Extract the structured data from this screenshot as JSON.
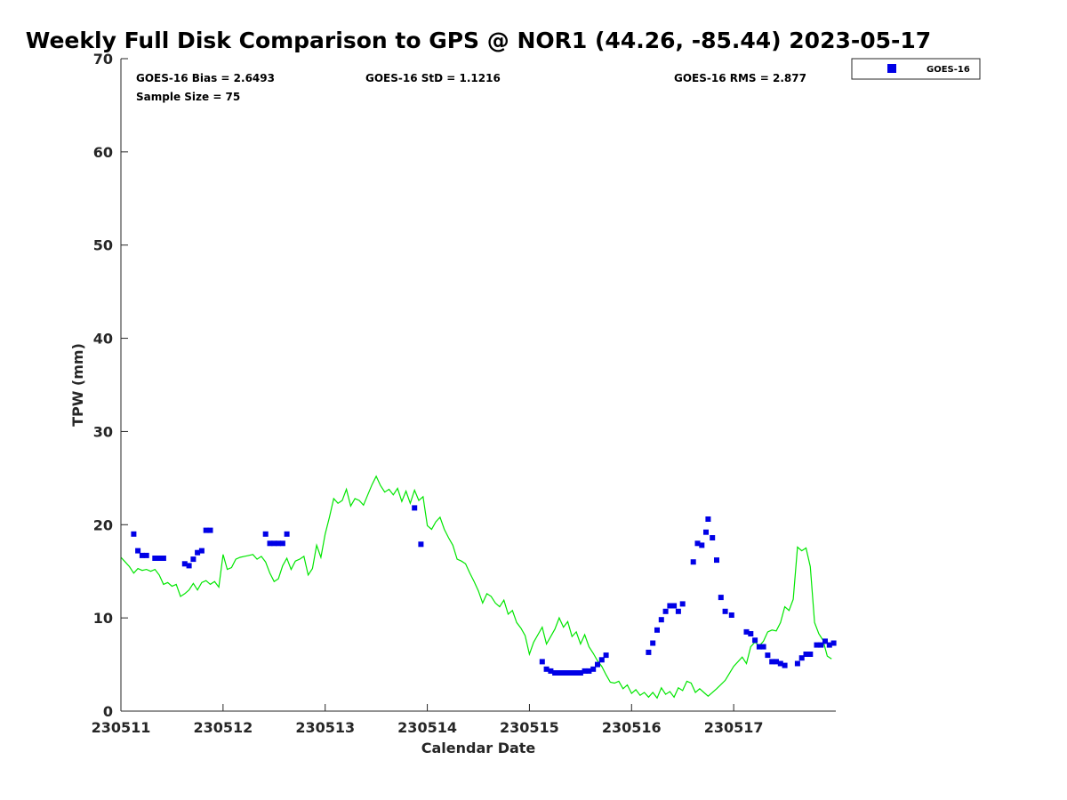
{
  "chart_data": {
    "type": "scatter",
    "title": "Weekly Full Disk Comparison to GPS @ NOR1 (44.26, -85.44) 2023-05-17",
    "xlabel": "Calendar Date",
    "ylabel": "TPW (mm)",
    "xlim": [
      "2023-05-11T00:00",
      "2023-05-18T00:00"
    ],
    "ylim": [
      0,
      70
    ],
    "x_ticks": [
      "2023-05-11",
      "2023-05-12",
      "2023-05-13",
      "2023-05-14",
      "2023-05-15",
      "2023-05-16",
      "2023-05-17"
    ],
    "x_tick_labels": [
      "230511",
      "230512",
      "230513",
      "230514",
      "230515",
      "230516",
      "230517"
    ],
    "y_ticks": [
      0,
      10,
      20,
      30,
      40,
      50,
      60,
      70
    ],
    "grid": false,
    "legend_position": "top-right, outside plot",
    "stats": {
      "bias": "GOES-16 Bias = 2.6493",
      "std": "GOES-16 StD = 1.1216",
      "rms": "GOES-16 RMS = 2.877",
      "sample_size": "Sample Size = 75"
    },
    "series": [
      {
        "name": "GOES-16",
        "kind": "scatter",
        "marker": "square",
        "color": "#0000e6",
        "points": [
          [
            "2023-05-11T03:00",
            19.0
          ],
          [
            "2023-05-11T04:00",
            17.2
          ],
          [
            "2023-05-11T05:00",
            16.7
          ],
          [
            "2023-05-11T06:00",
            16.7
          ],
          [
            "2023-05-11T08:00",
            16.4
          ],
          [
            "2023-05-11T09:00",
            16.4
          ],
          [
            "2023-05-11T10:00",
            16.4
          ],
          [
            "2023-05-11T15:00",
            15.8
          ],
          [
            "2023-05-11T16:00",
            15.6
          ],
          [
            "2023-05-11T17:00",
            16.3
          ],
          [
            "2023-05-11T18:00",
            17.0
          ],
          [
            "2023-05-11T19:00",
            17.2
          ],
          [
            "2023-05-11T20:00",
            19.4
          ],
          [
            "2023-05-11T21:00",
            19.4
          ],
          [
            "2023-05-12T10:00",
            19.0
          ],
          [
            "2023-05-12T11:00",
            18.0
          ],
          [
            "2023-05-12T12:00",
            18.0
          ],
          [
            "2023-05-12T13:00",
            18.0
          ],
          [
            "2023-05-12T14:00",
            18.0
          ],
          [
            "2023-05-12T15:00",
            19.0
          ],
          [
            "2023-05-13T21:00",
            21.8
          ],
          [
            "2023-05-13T22:30",
            17.9
          ],
          [
            "2023-05-15T03:00",
            5.3
          ],
          [
            "2023-05-15T04:00",
            4.5
          ],
          [
            "2023-05-15T05:00",
            4.3
          ],
          [
            "2023-05-15T06:00",
            4.1
          ],
          [
            "2023-05-15T07:00",
            4.1
          ],
          [
            "2023-05-15T08:00",
            4.1
          ],
          [
            "2023-05-15T09:00",
            4.1
          ],
          [
            "2023-05-15T10:00",
            4.1
          ],
          [
            "2023-05-15T11:00",
            4.1
          ],
          [
            "2023-05-15T12:00",
            4.1
          ],
          [
            "2023-05-15T13:00",
            4.3
          ],
          [
            "2023-05-15T14:00",
            4.3
          ],
          [
            "2023-05-15T15:00",
            4.5
          ],
          [
            "2023-05-15T16:00",
            5.0
          ],
          [
            "2023-05-15T17:00",
            5.5
          ],
          [
            "2023-05-15T18:00",
            6.0
          ],
          [
            "2023-05-16T04:00",
            6.3
          ],
          [
            "2023-05-16T05:00",
            7.3
          ],
          [
            "2023-05-16T06:00",
            8.7
          ],
          [
            "2023-05-16T07:00",
            9.8
          ],
          [
            "2023-05-16T08:00",
            10.7
          ],
          [
            "2023-05-16T09:00",
            11.3
          ],
          [
            "2023-05-16T10:00",
            11.3
          ],
          [
            "2023-05-16T11:00",
            10.7
          ],
          [
            "2023-05-16T12:00",
            11.5
          ],
          [
            "2023-05-16T14:30",
            16.0
          ],
          [
            "2023-05-16T15:30",
            18.0
          ],
          [
            "2023-05-16T16:30",
            17.8
          ],
          [
            "2023-05-16T17:30",
            19.2
          ],
          [
            "2023-05-16T18:00",
            20.6
          ],
          [
            "2023-05-16T19:00",
            18.6
          ],
          [
            "2023-05-16T20:00",
            16.2
          ],
          [
            "2023-05-16T21:00",
            12.2
          ],
          [
            "2023-05-16T22:00",
            10.7
          ],
          [
            "2023-05-16T23:30",
            10.3
          ],
          [
            "2023-05-17T03:00",
            8.5
          ],
          [
            "2023-05-17T04:00",
            8.3
          ],
          [
            "2023-05-17T05:00",
            7.6
          ],
          [
            "2023-05-17T06:00",
            6.9
          ],
          [
            "2023-05-17T07:00",
            6.9
          ],
          [
            "2023-05-17T08:00",
            6.0
          ],
          [
            "2023-05-17T09:00",
            5.3
          ],
          [
            "2023-05-17T10:00",
            5.3
          ],
          [
            "2023-05-17T11:00",
            5.1
          ],
          [
            "2023-05-17T12:00",
            4.9
          ],
          [
            "2023-05-17T15:00",
            5.1
          ],
          [
            "2023-05-17T16:00",
            5.7
          ],
          [
            "2023-05-17T17:00",
            6.1
          ],
          [
            "2023-05-17T18:00",
            6.1
          ],
          [
            "2023-05-17T19:30",
            7.1
          ],
          [
            "2023-05-17T20:30",
            7.1
          ],
          [
            "2023-05-17T21:30",
            7.5
          ],
          [
            "2023-05-17T22:30",
            7.1
          ],
          [
            "2023-05-17T23:30",
            7.3
          ]
        ]
      },
      {
        "kind": "line",
        "color": "#00e600",
        "points": [
          [
            "2023-05-11T00:00",
            16.5
          ],
          [
            "2023-05-11T01:00",
            16.0
          ],
          [
            "2023-05-11T02:00",
            15.5
          ],
          [
            "2023-05-11T03:00",
            14.8
          ],
          [
            "2023-05-11T04:00",
            15.3
          ],
          [
            "2023-05-11T05:00",
            15.1
          ],
          [
            "2023-05-11T06:00",
            15.2
          ],
          [
            "2023-05-11T07:00",
            15.0
          ],
          [
            "2023-05-11T08:00",
            15.2
          ],
          [
            "2023-05-11T09:00",
            14.6
          ],
          [
            "2023-05-11T10:00",
            13.6
          ],
          [
            "2023-05-11T11:00",
            13.8
          ],
          [
            "2023-05-11T12:00",
            13.4
          ],
          [
            "2023-05-11T13:00",
            13.6
          ],
          [
            "2023-05-11T14:00",
            12.3
          ],
          [
            "2023-05-11T15:00",
            12.6
          ],
          [
            "2023-05-11T16:00",
            13.0
          ],
          [
            "2023-05-11T17:00",
            13.7
          ],
          [
            "2023-05-11T18:00",
            13.0
          ],
          [
            "2023-05-11T19:00",
            13.8
          ],
          [
            "2023-05-11T20:00",
            14.0
          ],
          [
            "2023-05-11T21:00",
            13.6
          ],
          [
            "2023-05-11T22:00",
            13.9
          ],
          [
            "2023-05-11T23:00",
            13.3
          ],
          [
            "2023-05-12T00:00",
            16.8
          ],
          [
            "2023-05-12T01:00",
            15.2
          ],
          [
            "2023-05-12T02:00",
            15.4
          ],
          [
            "2023-05-12T03:00",
            16.3
          ],
          [
            "2023-05-12T04:00",
            16.5
          ],
          [
            "2023-05-12T05:00",
            16.6
          ],
          [
            "2023-05-12T06:00",
            16.7
          ],
          [
            "2023-05-12T07:00",
            16.8
          ],
          [
            "2023-05-12T08:00",
            16.3
          ],
          [
            "2023-05-12T09:00",
            16.6
          ],
          [
            "2023-05-12T10:00",
            16.0
          ],
          [
            "2023-05-12T11:00",
            14.8
          ],
          [
            "2023-05-12T12:00",
            13.9
          ],
          [
            "2023-05-12T13:00",
            14.2
          ],
          [
            "2023-05-12T14:00",
            15.6
          ],
          [
            "2023-05-12T15:00",
            16.4
          ],
          [
            "2023-05-12T16:00",
            15.2
          ],
          [
            "2023-05-12T17:00",
            16.1
          ],
          [
            "2023-05-12T18:00",
            16.3
          ],
          [
            "2023-05-12T19:00",
            16.6
          ],
          [
            "2023-05-12T20:00",
            14.6
          ],
          [
            "2023-05-12T21:00",
            15.3
          ],
          [
            "2023-05-12T22:00",
            17.8
          ],
          [
            "2023-05-12T23:00",
            16.5
          ],
          [
            "2023-05-13T00:00",
            19.0
          ],
          [
            "2023-05-13T01:00",
            20.8
          ],
          [
            "2023-05-13T02:00",
            22.8
          ],
          [
            "2023-05-13T03:00",
            22.3
          ],
          [
            "2023-05-13T04:00",
            22.6
          ],
          [
            "2023-05-13T05:00",
            23.8
          ],
          [
            "2023-05-13T06:00",
            22.0
          ],
          [
            "2023-05-13T07:00",
            22.8
          ],
          [
            "2023-05-13T08:00",
            22.6
          ],
          [
            "2023-05-13T09:00",
            22.1
          ],
          [
            "2023-05-13T10:00",
            23.2
          ],
          [
            "2023-05-13T11:00",
            24.3
          ],
          [
            "2023-05-13T12:00",
            25.2
          ],
          [
            "2023-05-13T13:00",
            24.2
          ],
          [
            "2023-05-13T14:00",
            23.5
          ],
          [
            "2023-05-13T15:00",
            23.8
          ],
          [
            "2023-05-13T16:00",
            23.2
          ],
          [
            "2023-05-13T17:00",
            23.9
          ],
          [
            "2023-05-13T18:00",
            22.5
          ],
          [
            "2023-05-13T19:00",
            23.6
          ],
          [
            "2023-05-13T20:00",
            22.3
          ],
          [
            "2023-05-13T21:00",
            23.7
          ],
          [
            "2023-05-13T22:00",
            22.6
          ],
          [
            "2023-05-13T23:00",
            23.0
          ],
          [
            "2023-05-14T00:00",
            19.9
          ],
          [
            "2023-05-14T01:00",
            19.5
          ],
          [
            "2023-05-14T02:00",
            20.3
          ],
          [
            "2023-05-14T03:00",
            20.8
          ],
          [
            "2023-05-14T04:00",
            19.5
          ],
          [
            "2023-05-14T05:00",
            18.6
          ],
          [
            "2023-05-14T06:00",
            17.8
          ],
          [
            "2023-05-14T07:00",
            16.3
          ],
          [
            "2023-05-14T08:00",
            16.1
          ],
          [
            "2023-05-14T09:00",
            15.8
          ],
          [
            "2023-05-14T10:00",
            14.8
          ],
          [
            "2023-05-14T11:00",
            13.9
          ],
          [
            "2023-05-14T12:00",
            12.9
          ],
          [
            "2023-05-14T13:00",
            11.6
          ],
          [
            "2023-05-14T14:00",
            12.6
          ],
          [
            "2023-05-14T15:00",
            12.3
          ],
          [
            "2023-05-14T16:00",
            11.6
          ],
          [
            "2023-05-14T17:00",
            11.2
          ],
          [
            "2023-05-14T18:00",
            11.9
          ],
          [
            "2023-05-14T19:00",
            10.4
          ],
          [
            "2023-05-14T20:00",
            10.8
          ],
          [
            "2023-05-14T21:00",
            9.5
          ],
          [
            "2023-05-14T22:00",
            8.9
          ],
          [
            "2023-05-14T23:00",
            8.1
          ],
          [
            "2023-05-15T00:00",
            6.1
          ],
          [
            "2023-05-15T01:00",
            7.4
          ],
          [
            "2023-05-15T02:00",
            8.2
          ],
          [
            "2023-05-15T03:00",
            9.0
          ],
          [
            "2023-05-15T04:00",
            7.2
          ],
          [
            "2023-05-15T05:00",
            8.0
          ],
          [
            "2023-05-15T06:00",
            8.8
          ],
          [
            "2023-05-15T07:00",
            10.0
          ],
          [
            "2023-05-15T08:00",
            9.0
          ],
          [
            "2023-05-15T09:00",
            9.6
          ],
          [
            "2023-05-15T10:00",
            8.0
          ],
          [
            "2023-05-15T11:00",
            8.5
          ],
          [
            "2023-05-15T12:00",
            7.2
          ],
          [
            "2023-05-15T13:00",
            8.2
          ],
          [
            "2023-05-15T14:00",
            6.9
          ],
          [
            "2023-05-15T15:00",
            6.2
          ],
          [
            "2023-05-15T16:00",
            5.4
          ],
          [
            "2023-05-15T17:00",
            4.8
          ],
          [
            "2023-05-15T18:00",
            3.9
          ],
          [
            "2023-05-15T19:00",
            3.1
          ],
          [
            "2023-05-15T20:00",
            3.0
          ],
          [
            "2023-05-15T21:00",
            3.2
          ],
          [
            "2023-05-15T22:00",
            2.4
          ],
          [
            "2023-05-15T23:00",
            2.8
          ],
          [
            "2023-05-16T00:00",
            1.9
          ],
          [
            "2023-05-16T01:00",
            2.3
          ],
          [
            "2023-05-16T02:00",
            1.7
          ],
          [
            "2023-05-16T03:00",
            2.0
          ],
          [
            "2023-05-16T04:00",
            1.5
          ],
          [
            "2023-05-16T05:00",
            2.0
          ],
          [
            "2023-05-16T06:00",
            1.4
          ],
          [
            "2023-05-16T07:00",
            2.5
          ],
          [
            "2023-05-16T08:00",
            1.8
          ],
          [
            "2023-05-16T09:00",
            2.1
          ],
          [
            "2023-05-16T10:00",
            1.5
          ],
          [
            "2023-05-16T11:00",
            2.5
          ],
          [
            "2023-05-16T12:00",
            2.2
          ],
          [
            "2023-05-16T13:00",
            3.2
          ],
          [
            "2023-05-16T14:00",
            3.0
          ],
          [
            "2023-05-16T15:00",
            2.0
          ],
          [
            "2023-05-16T16:00",
            2.4
          ],
          [
            "2023-05-16T17:00",
            2.0
          ],
          [
            "2023-05-16T18:00",
            1.6
          ],
          [
            "2023-05-16T20:00",
            2.4
          ],
          [
            "2023-05-16T22:00",
            3.3
          ],
          [
            "2023-05-17T00:00",
            4.8
          ],
          [
            "2023-05-17T02:00",
            5.8
          ],
          [
            "2023-05-17T03:00",
            5.1
          ],
          [
            "2023-05-17T04:00",
            6.9
          ],
          [
            "2023-05-17T05:00",
            7.4
          ],
          [
            "2023-05-17T06:00",
            7.0
          ],
          [
            "2023-05-17T07:00",
            7.5
          ],
          [
            "2023-05-17T08:00",
            8.5
          ],
          [
            "2023-05-17T09:00",
            8.7
          ],
          [
            "2023-05-17T10:00",
            8.6
          ],
          [
            "2023-05-17T11:00",
            9.5
          ],
          [
            "2023-05-17T12:00",
            11.2
          ],
          [
            "2023-05-17T13:00",
            10.8
          ],
          [
            "2023-05-17T14:00",
            12.0
          ],
          [
            "2023-05-17T15:00",
            17.6
          ],
          [
            "2023-05-17T16:00",
            17.2
          ],
          [
            "2023-05-17T17:00",
            17.5
          ],
          [
            "2023-05-17T18:00",
            15.5
          ],
          [
            "2023-05-17T19:00",
            9.5
          ],
          [
            "2023-05-17T20:00",
            8.3
          ],
          [
            "2023-05-17T21:00",
            7.6
          ],
          [
            "2023-05-17T22:00",
            5.9
          ],
          [
            "2023-05-17T23:00",
            5.6
          ]
        ]
      }
    ]
  }
}
